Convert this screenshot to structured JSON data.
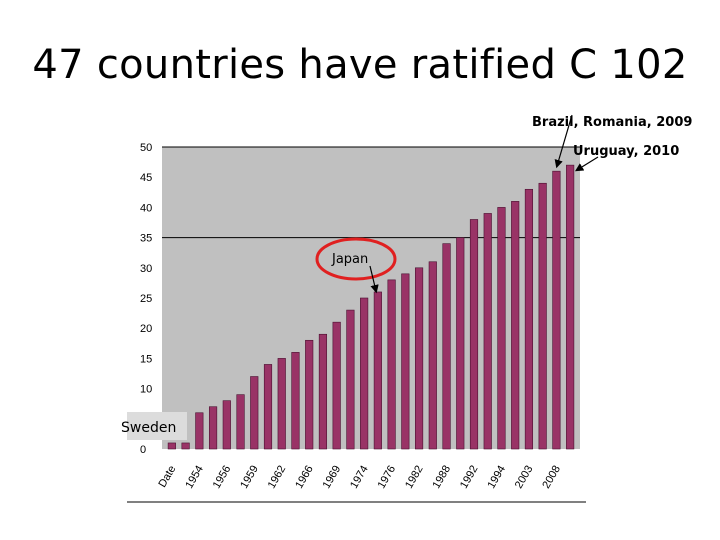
{
  "title": "47 countries have ratified C 102",
  "chart_data": {
    "type": "bar",
    "ylim": [
      0,
      50
    ],
    "yticks": [
      0,
      5,
      10,
      15,
      20,
      25,
      30,
      35,
      40,
      45,
      50
    ],
    "values": [
      1,
      1,
      6,
      7,
      8,
      9,
      12,
      14,
      15,
      16,
      18,
      19,
      21,
      23,
      25,
      26,
      28,
      29,
      30,
      31,
      34,
      35,
      38,
      39,
      40,
      41,
      43,
      44,
      46,
      47
    ],
    "xtick_labels": [
      {
        "label": "Date",
        "index": 0
      },
      {
        "label": "1954",
        "index": 2
      },
      {
        "label": "1956",
        "index": 4
      },
      {
        "label": "1959",
        "index": 6
      },
      {
        "label": "1962",
        "index": 8
      },
      {
        "label": "1966",
        "index": 10
      },
      {
        "label": "1969",
        "index": 12
      },
      {
        "label": "1974",
        "index": 14
      },
      {
        "label": "1976",
        "index": 16
      },
      {
        "label": "1982",
        "index": 18
      },
      {
        "label": "1988",
        "index": 20
      },
      {
        "label": "1992",
        "index": 22
      },
      {
        "label": "1994",
        "index": 24
      },
      {
        "label": "2003",
        "index": 26
      },
      {
        "label": "2008",
        "index": 28
      }
    ],
    "gridlines": [
      35
    ],
    "bar_color": "#993366",
    "plot_background": "#c0c0c0",
    "annotations": [
      {
        "text": "Brazil, Romania, 2009",
        "target_index": 28
      },
      {
        "text": "Uruguay, 2010",
        "target_index": 29
      },
      {
        "text": "Japan",
        "target_index": 15,
        "highlight": "circle",
        "highlight_color": "#e02020"
      },
      {
        "text": "Sweden",
        "target_index": 0
      }
    ]
  }
}
